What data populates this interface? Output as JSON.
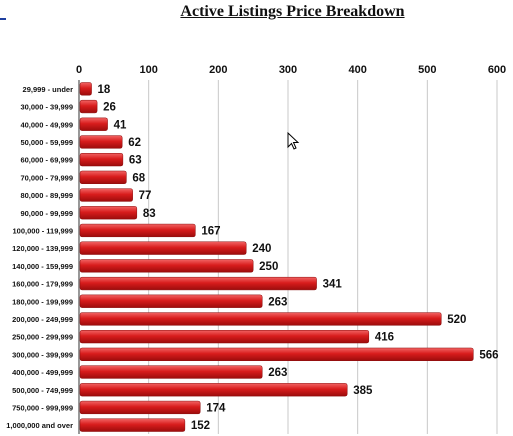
{
  "chart_data": {
    "type": "bar",
    "orientation": "horizontal",
    "title": "Active Listings Price Breakdown",
    "categories": [
      "29,999 - under",
      "30,000 - 39,999",
      "40,000 - 49,999",
      "50,000 - 59,999",
      "60,000 - 69,999",
      "70,000 - 79,999",
      "80,000 - 89,999",
      "90,000 - 99,999",
      "100,000 - 119,999",
      "120,000 - 139,999",
      "140,000 - 159,999",
      "160,000 - 179,999",
      "180,000 - 199,999",
      "200,000 - 249,999",
      "250,000 - 299,999",
      "300,000 - 399,999",
      "400,000 - 499,999",
      "500,000 - 749,999",
      "750,000 - 999,999",
      "1,000,000 and over"
    ],
    "values": [
      18,
      26,
      41,
      62,
      63,
      68,
      77,
      83,
      167,
      240,
      250,
      341,
      263,
      520,
      416,
      566,
      263,
      385,
      174,
      152
    ],
    "xlim": [
      0,
      600
    ],
    "ticks": [
      0,
      100,
      200,
      300,
      400,
      500,
      600
    ],
    "tick_position": "top",
    "grid": true,
    "legend": "none",
    "bar_color": "#d81c1c"
  },
  "cursor": "arrow-cursor-icon"
}
